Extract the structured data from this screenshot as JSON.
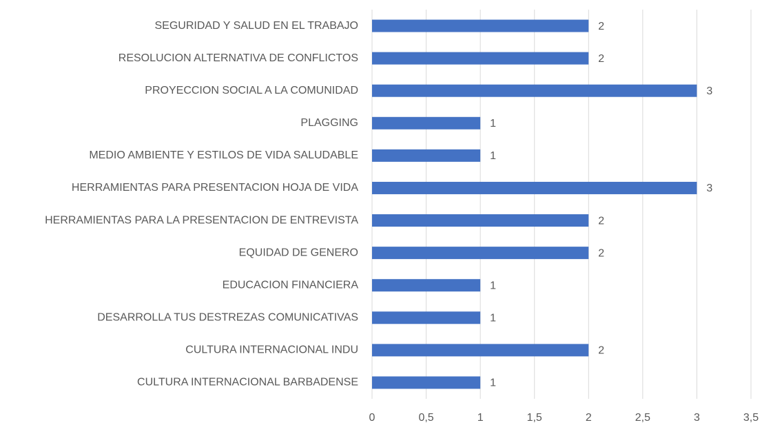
{
  "chart_data": {
    "type": "barh",
    "categories": [
      "SEGURIDAD Y SALUD EN EL TRABAJO",
      "RESOLUCION ALTERNATIVA DE CONFLICTOS",
      "PROYECCION SOCIAL A LA COMUNIDAD",
      "PLAGGING",
      "MEDIO AMBIENTE Y ESTILOS DE VIDA SALUDABLE",
      "HERRAMIENTAS PARA PRESENTACION HOJA DE VIDA",
      "HERRAMIENTAS PARA LA PRESENTACION DE ENTREVISTA",
      "EQUIDAD DE GENERO",
      "EDUCACION FINANCIERA",
      "DESARROLLA TUS DESTREZAS COMUNICATIVAS",
      "CULTURA INTERNACIONAL INDU",
      "CULTURA INTERNACIONAL BARBADENSE"
    ],
    "values": [
      2,
      2,
      3,
      1,
      1,
      3,
      2,
      2,
      1,
      1,
      2,
      1
    ],
    "color": "#4472c4",
    "xlim": [
      0,
      3.5
    ],
    "xticks": [
      0,
      {
        "value": 0.5,
        "label": "0,5"
      },
      1,
      {
        "value": 1.5,
        "label": "1,5"
      },
      2,
      {
        "value": 2.5,
        "label": "2,5"
      },
      3,
      {
        "value": 3.5,
        "label": "3,5"
      }
    ],
    "grid": true
  }
}
